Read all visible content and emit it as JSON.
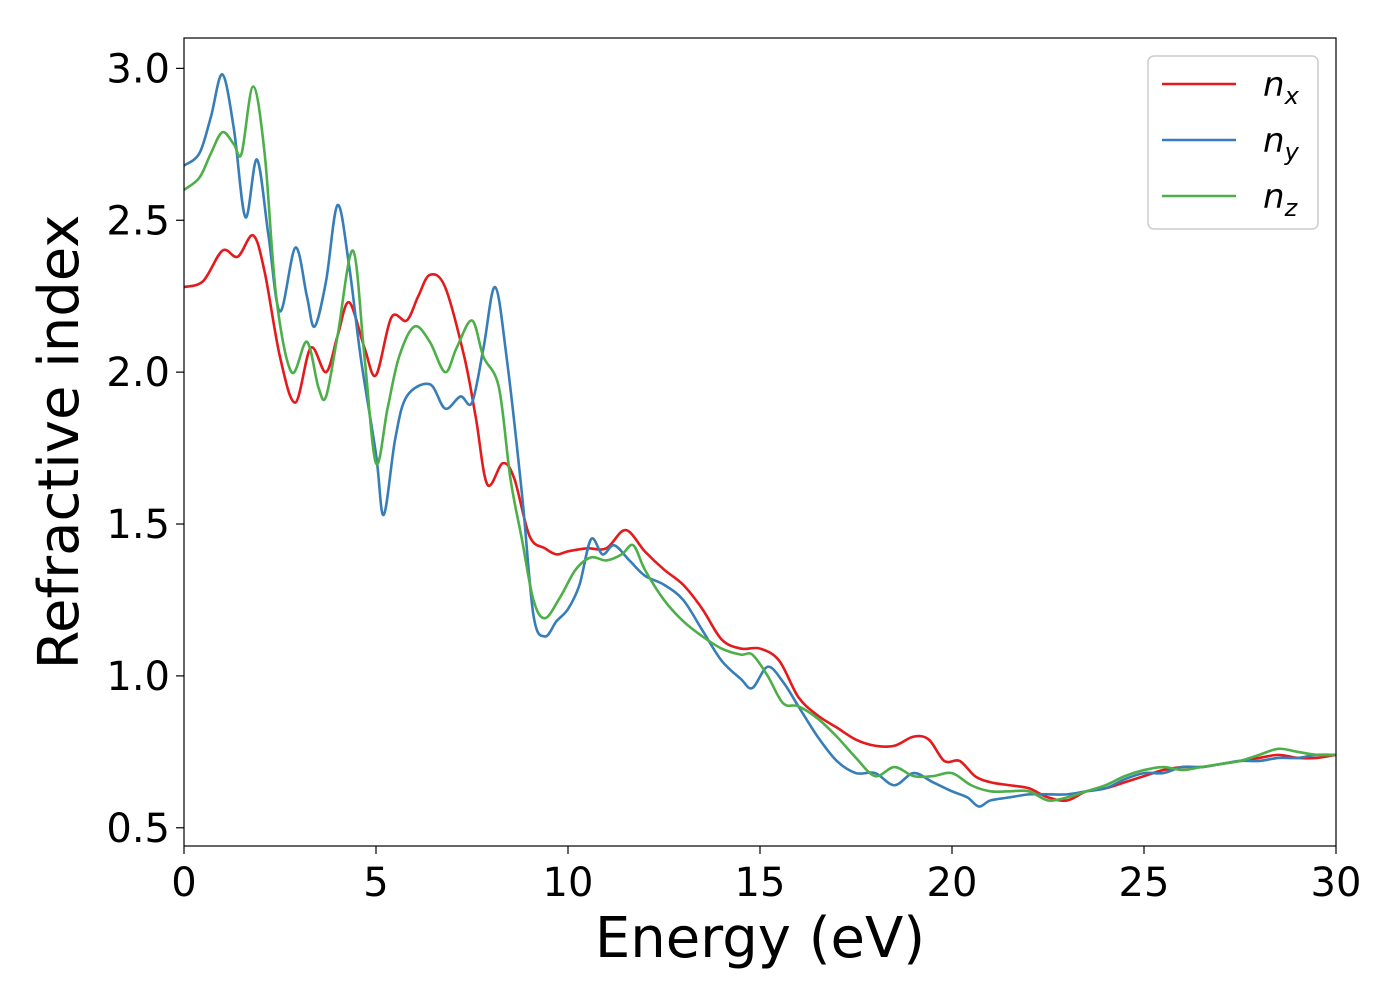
{
  "chart_data": {
    "type": "line",
    "title": "",
    "xlabel": "Energy (eV)",
    "ylabel": "Refractive index",
    "xlim": [
      0,
      30
    ],
    "ylim": [
      0.44,
      3.1
    ],
    "xticks": [
      0,
      5,
      10,
      15,
      20,
      25,
      30
    ],
    "yticks": [
      0.5,
      1.0,
      1.5,
      2.0,
      2.5,
      3.0
    ],
    "xtick_labels": [
      "0",
      "5",
      "10",
      "15",
      "20",
      "25",
      "30"
    ],
    "ytick_labels": [
      "0.5",
      "1.0",
      "1.5",
      "2.0",
      "2.5",
      "3.0"
    ],
    "grid": false,
    "legend_position": "top-right",
    "series": [
      {
        "name": "n",
        "subscript": "x",
        "color": "#e41a1c",
        "points": [
          [
            0,
            2.28
          ],
          [
            0.5,
            2.3
          ],
          [
            1.0,
            2.4
          ],
          [
            1.4,
            2.38
          ],
          [
            1.8,
            2.45
          ],
          [
            2.1,
            2.33
          ],
          [
            2.5,
            2.05
          ],
          [
            2.9,
            1.9
          ],
          [
            3.3,
            2.08
          ],
          [
            3.7,
            2.0
          ],
          [
            4.0,
            2.12
          ],
          [
            4.3,
            2.23
          ],
          [
            4.7,
            2.08
          ],
          [
            5.0,
            1.99
          ],
          [
            5.4,
            2.18
          ],
          [
            5.8,
            2.17
          ],
          [
            6.1,
            2.25
          ],
          [
            6.4,
            2.32
          ],
          [
            6.8,
            2.28
          ],
          [
            7.3,
            2.05
          ],
          [
            7.6,
            1.85
          ],
          [
            7.9,
            1.63
          ],
          [
            8.3,
            1.7
          ],
          [
            8.6,
            1.65
          ],
          [
            9.0,
            1.46
          ],
          [
            9.4,
            1.42
          ],
          [
            9.7,
            1.4
          ],
          [
            10.0,
            1.41
          ],
          [
            10.5,
            1.42
          ],
          [
            11.0,
            1.42
          ],
          [
            11.5,
            1.48
          ],
          [
            12.0,
            1.41
          ],
          [
            12.5,
            1.35
          ],
          [
            13.0,
            1.3
          ],
          [
            13.5,
            1.22
          ],
          [
            14.0,
            1.12
          ],
          [
            14.5,
            1.09
          ],
          [
            15.0,
            1.09
          ],
          [
            15.5,
            1.05
          ],
          [
            16.0,
            0.93
          ],
          [
            16.5,
            0.87
          ],
          [
            17.0,
            0.83
          ],
          [
            17.5,
            0.79
          ],
          [
            18.0,
            0.77
          ],
          [
            18.5,
            0.77
          ],
          [
            19.0,
            0.8
          ],
          [
            19.4,
            0.79
          ],
          [
            19.8,
            0.72
          ],
          [
            20.2,
            0.72
          ],
          [
            20.6,
            0.67
          ],
          [
            21.0,
            0.65
          ],
          [
            21.5,
            0.64
          ],
          [
            22.0,
            0.63
          ],
          [
            22.5,
            0.6
          ],
          [
            23.0,
            0.59
          ],
          [
            23.5,
            0.62
          ],
          [
            24.0,
            0.63
          ],
          [
            24.5,
            0.65
          ],
          [
            25.0,
            0.67
          ],
          [
            25.5,
            0.69
          ],
          [
            26.0,
            0.7
          ],
          [
            26.5,
            0.7
          ],
          [
            27.0,
            0.71
          ],
          [
            27.5,
            0.72
          ],
          [
            28.0,
            0.73
          ],
          [
            28.5,
            0.74
          ],
          [
            29.0,
            0.73
          ],
          [
            29.5,
            0.73
          ],
          [
            30.0,
            0.74
          ]
        ]
      },
      {
        "name": "n",
        "subscript": "y",
        "color": "#377eb8",
        "points": [
          [
            0,
            2.68
          ],
          [
            0.4,
            2.72
          ],
          [
            0.7,
            2.84
          ],
          [
            1.0,
            2.98
          ],
          [
            1.3,
            2.8
          ],
          [
            1.6,
            2.51
          ],
          [
            1.9,
            2.7
          ],
          [
            2.2,
            2.45
          ],
          [
            2.5,
            2.2
          ],
          [
            2.9,
            2.41
          ],
          [
            3.2,
            2.25
          ],
          [
            3.4,
            2.15
          ],
          [
            3.7,
            2.3
          ],
          [
            4.0,
            2.55
          ],
          [
            4.3,
            2.35
          ],
          [
            4.6,
            2.05
          ],
          [
            5.0,
            1.73
          ],
          [
            5.2,
            1.53
          ],
          [
            5.5,
            1.78
          ],
          [
            5.8,
            1.92
          ],
          [
            6.4,
            1.96
          ],
          [
            6.8,
            1.88
          ],
          [
            7.2,
            1.92
          ],
          [
            7.5,
            1.9
          ],
          [
            7.8,
            2.08
          ],
          [
            8.1,
            2.28
          ],
          [
            8.4,
            2.05
          ],
          [
            8.8,
            1.6
          ],
          [
            9.1,
            1.2
          ],
          [
            9.4,
            1.13
          ],
          [
            9.7,
            1.18
          ],
          [
            10.0,
            1.22
          ],
          [
            10.3,
            1.3
          ],
          [
            10.6,
            1.45
          ],
          [
            10.9,
            1.4
          ],
          [
            11.2,
            1.43
          ],
          [
            11.6,
            1.38
          ],
          [
            12.0,
            1.33
          ],
          [
            12.5,
            1.3
          ],
          [
            13.0,
            1.25
          ],
          [
            13.5,
            1.15
          ],
          [
            14.0,
            1.05
          ],
          [
            14.5,
            0.99
          ],
          [
            14.8,
            0.96
          ],
          [
            15.2,
            1.03
          ],
          [
            15.6,
            0.98
          ],
          [
            16.0,
            0.9
          ],
          [
            16.5,
            0.8
          ],
          [
            17.0,
            0.72
          ],
          [
            17.5,
            0.68
          ],
          [
            18.0,
            0.68
          ],
          [
            18.5,
            0.64
          ],
          [
            19.0,
            0.68
          ],
          [
            19.5,
            0.65
          ],
          [
            20.0,
            0.62
          ],
          [
            20.4,
            0.6
          ],
          [
            20.7,
            0.57
          ],
          [
            21.0,
            0.59
          ],
          [
            21.5,
            0.6
          ],
          [
            22.0,
            0.61
          ],
          [
            22.5,
            0.61
          ],
          [
            23.0,
            0.61
          ],
          [
            23.5,
            0.62
          ],
          [
            24.0,
            0.63
          ],
          [
            24.5,
            0.66
          ],
          [
            25.0,
            0.68
          ],
          [
            25.5,
            0.68
          ],
          [
            26.0,
            0.7
          ],
          [
            26.5,
            0.7
          ],
          [
            27.0,
            0.71
          ],
          [
            27.5,
            0.72
          ],
          [
            28.0,
            0.72
          ],
          [
            28.5,
            0.73
          ],
          [
            29.0,
            0.73
          ],
          [
            29.5,
            0.74
          ],
          [
            30.0,
            0.74
          ]
        ]
      },
      {
        "name": "n",
        "subscript": "z",
        "color": "#4daf4a",
        "points": [
          [
            0,
            2.6
          ],
          [
            0.4,
            2.64
          ],
          [
            0.7,
            2.72
          ],
          [
            1.0,
            2.79
          ],
          [
            1.3,
            2.75
          ],
          [
            1.5,
            2.72
          ],
          [
            1.8,
            2.94
          ],
          [
            2.1,
            2.72
          ],
          [
            2.4,
            2.25
          ],
          [
            2.8,
            2.0
          ],
          [
            3.2,
            2.1
          ],
          [
            3.5,
            1.95
          ],
          [
            3.7,
            1.92
          ],
          [
            4.0,
            2.12
          ],
          [
            4.4,
            2.4
          ],
          [
            4.7,
            2.05
          ],
          [
            5.0,
            1.7
          ],
          [
            5.3,
            1.88
          ],
          [
            5.6,
            2.05
          ],
          [
            6.0,
            2.15
          ],
          [
            6.4,
            2.1
          ],
          [
            6.8,
            2.0
          ],
          [
            7.1,
            2.08
          ],
          [
            7.5,
            2.17
          ],
          [
            7.8,
            2.05
          ],
          [
            8.2,
            1.95
          ],
          [
            8.5,
            1.65
          ],
          [
            8.8,
            1.45
          ],
          [
            9.1,
            1.25
          ],
          [
            9.4,
            1.19
          ],
          [
            9.8,
            1.26
          ],
          [
            10.2,
            1.35
          ],
          [
            10.6,
            1.39
          ],
          [
            11.0,
            1.38
          ],
          [
            11.4,
            1.4
          ],
          [
            11.7,
            1.43
          ],
          [
            12.0,
            1.35
          ],
          [
            12.5,
            1.25
          ],
          [
            13.0,
            1.18
          ],
          [
            13.5,
            1.13
          ],
          [
            14.0,
            1.09
          ],
          [
            14.5,
            1.07
          ],
          [
            14.8,
            1.07
          ],
          [
            15.2,
            1.0
          ],
          [
            15.6,
            0.91
          ],
          [
            16.0,
            0.9
          ],
          [
            16.5,
            0.86
          ],
          [
            17.0,
            0.8
          ],
          [
            17.5,
            0.73
          ],
          [
            18.0,
            0.67
          ],
          [
            18.5,
            0.7
          ],
          [
            19.0,
            0.67
          ],
          [
            19.5,
            0.67
          ],
          [
            20.0,
            0.68
          ],
          [
            20.5,
            0.64
          ],
          [
            21.0,
            0.62
          ],
          [
            21.5,
            0.62
          ],
          [
            22.0,
            0.62
          ],
          [
            22.5,
            0.59
          ],
          [
            23.0,
            0.6
          ],
          [
            23.5,
            0.62
          ],
          [
            24.0,
            0.64
          ],
          [
            24.5,
            0.67
          ],
          [
            25.0,
            0.69
          ],
          [
            25.5,
            0.7
          ],
          [
            26.0,
            0.69
          ],
          [
            26.5,
            0.7
          ],
          [
            27.0,
            0.71
          ],
          [
            27.5,
            0.72
          ],
          [
            28.0,
            0.74
          ],
          [
            28.5,
            0.76
          ],
          [
            29.0,
            0.75
          ],
          [
            29.5,
            0.74
          ],
          [
            30.0,
            0.74
          ]
        ]
      }
    ]
  }
}
